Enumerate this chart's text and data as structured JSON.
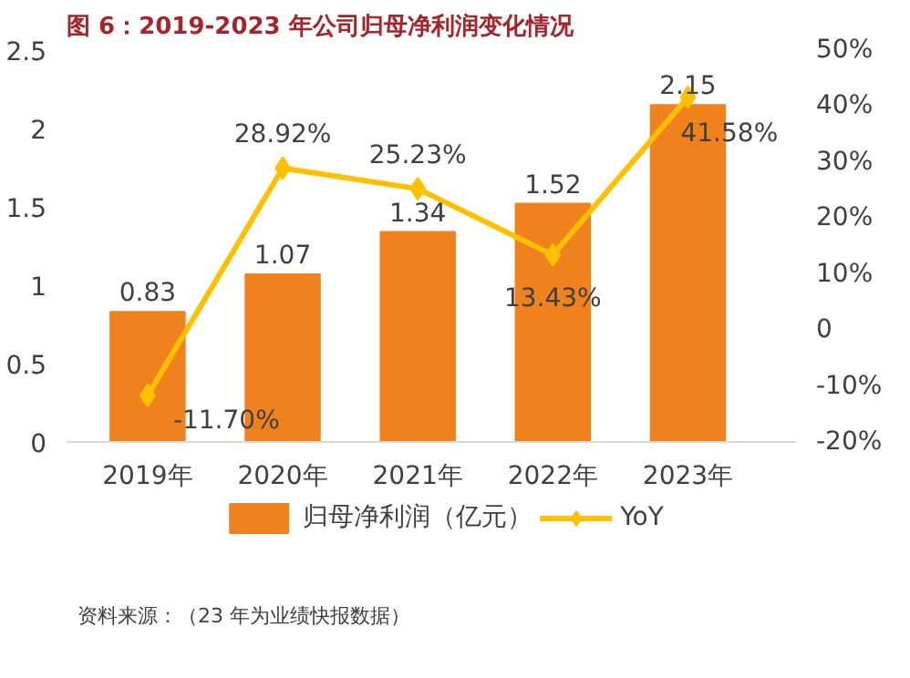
{
  "chart_data": {
    "type": "bar",
    "title": "图 6：2019-2023 年公司归母净利润变化情况",
    "categories": [
      "2019年",
      "2020年",
      "2021年",
      "2022年",
      "2023年"
    ],
    "series": [
      {
        "name": "归母净利润（亿元）",
        "color": "#f0821e",
        "values": [
          0.83,
          1.07,
          1.34,
          1.52,
          2.15
        ],
        "value_labels": [
          "0.83",
          "1.07",
          "1.34",
          "1.52",
          "2.15"
        ]
      },
      {
        "name": "YoY",
        "type": "line",
        "axis": "y2",
        "color": "#ffc000",
        "marker": "diamond",
        "values": [
          -11.7,
          28.92,
          25.23,
          13.43,
          41.58
        ],
        "value_labels": [
          "-11.70%",
          "28.92%",
          "25.23%",
          "13.43%",
          "41.58%"
        ]
      }
    ],
    "ylim": [
      0,
      2.5
    ],
    "yticks": [
      0,
      0.5,
      1,
      1.5,
      2,
      2.5
    ],
    "y2lim": [
      -20,
      50
    ],
    "y2ticks": [
      {
        "value": -20,
        "label": "-20%"
      },
      {
        "value": -10,
        "label": "-10%"
      },
      0,
      {
        "value": 10,
        "label": "10%"
      },
      {
        "value": 20,
        "label": "20%"
      },
      {
        "value": 30,
        "label": "30%"
      },
      {
        "value": 40,
        "label": "40%"
      },
      {
        "value": 50,
        "label": "50%"
      }
    ],
    "grid": false,
    "legend": "bottom",
    "annotations": [
      "资料来源：（23 年为业绩快报数据）"
    ]
  }
}
